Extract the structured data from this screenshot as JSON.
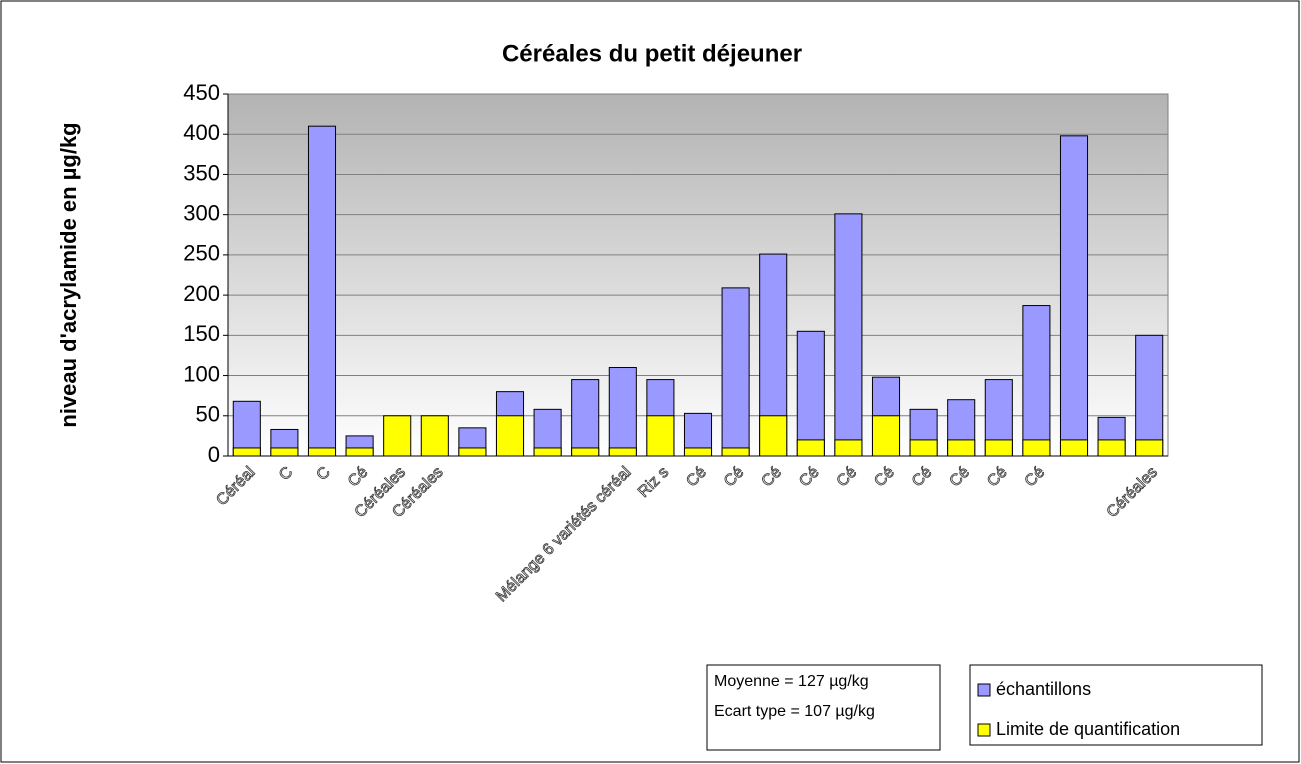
{
  "chart_data": {
    "type": "bar",
    "title": "Céréales du petit déjeuner",
    "y_label": "niveau d'acrylamide en µg/kg",
    "categories": [
      "Céréal",
      "C",
      "C",
      "Cé",
      "Céréales",
      "Céréales",
      null,
      null,
      null,
      null,
      "Mélange 6 variétés céréal",
      "Riz s",
      "Cé",
      "Cé",
      "Cé",
      "Cé",
      "Cé",
      "Cé",
      "Cé",
      "Cé",
      "Cé",
      "Cé",
      null,
      null,
      "Céréales"
    ],
    "series": [
      {
        "name": "échantillons",
        "color": "#9999ff",
        "values": [
          68,
          33,
          410,
          25,
          null,
          null,
          35,
          80,
          58,
          95,
          110,
          95,
          53,
          209,
          251,
          155,
          301,
          98,
          58,
          70,
          95,
          187,
          398,
          48,
          150
        ]
      },
      {
        "name": "Limite de quantification",
        "color": "#ffff00",
        "values": [
          10,
          10,
          10,
          10,
          50,
          50,
          10,
          50,
          10,
          10,
          10,
          50,
          10,
          10,
          50,
          20,
          20,
          50,
          20,
          20,
          20,
          20,
          20,
          20,
          20
        ]
      }
    ],
    "ylim": [
      0,
      450
    ],
    "yticks": [
      0,
      50,
      100,
      150,
      200,
      250,
      300,
      350,
      400,
      450
    ],
    "grid": true,
    "annotations": [
      "Moyenne = 127 µg/kg",
      "Ecart type = 107 µg/kg"
    ]
  }
}
